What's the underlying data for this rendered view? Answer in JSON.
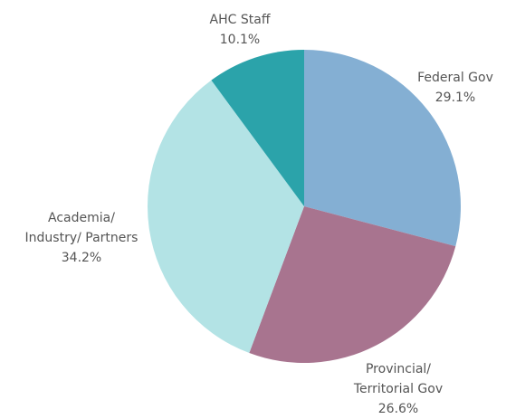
{
  "chart_data": {
    "type": "pie",
    "categories": [
      [
        "Federal Gov"
      ],
      [
        "Provincial/",
        "Territorial Gov"
      ],
      [
        "Academia/",
        "Industry/ Partners"
      ],
      [
        "AHC Staff"
      ]
    ],
    "values": [
      29.1,
      26.6,
      34.2,
      10.1
    ],
    "value_labels": [
      "29.1%",
      "26.6%",
      "34.2%",
      "10.1%"
    ],
    "colors": [
      "#84afd3",
      "#a8748f",
      "#b3e3e5",
      "#2ba3aa"
    ]
  }
}
